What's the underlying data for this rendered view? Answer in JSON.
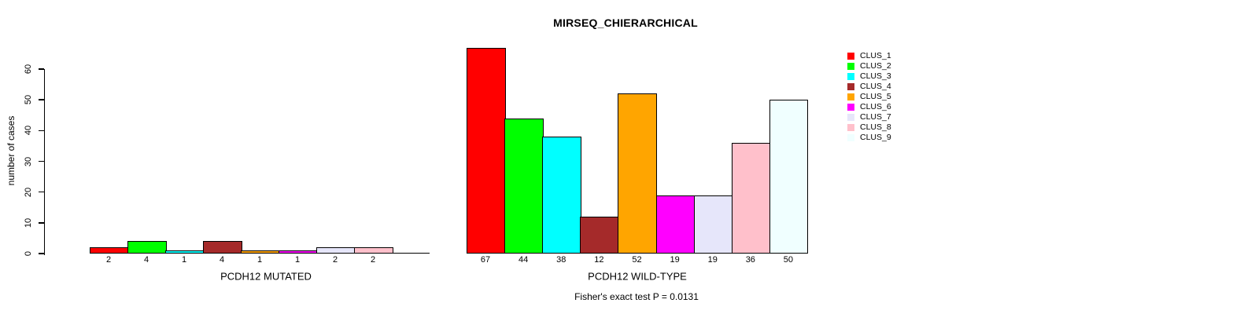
{
  "chart_data": {
    "type": "bar",
    "title": "MIRSEQ_CHIERARCHICAL",
    "ylabel": "number of cases",
    "ylim": [
      0,
      60
    ],
    "yticks": [
      0,
      10,
      20,
      30,
      40,
      50,
      60
    ],
    "grid": false,
    "annotation": "Fisher's exact test P = 0.0131",
    "legend_position": "right",
    "clusters": [
      {
        "label": "CLUS_1",
        "color": "#FF0000"
      },
      {
        "label": "CLUS_2",
        "color": "#00FF00"
      },
      {
        "label": "CLUS_3",
        "color": "#00FFFF"
      },
      {
        "label": "CLUS_4",
        "color": "#A52A2A"
      },
      {
        "label": "CLUS_5",
        "color": "#FFA500"
      },
      {
        "label": "CLUS_6",
        "color": "#FF00FF"
      },
      {
        "label": "CLUS_7",
        "color": "#E6E6FA"
      },
      {
        "label": "CLUS_8",
        "color": "#FFC0CB"
      },
      {
        "label": "CLUS_9",
        "color": "#F0FFFF"
      }
    ],
    "panels": [
      {
        "xlabel": "PCDH12 MUTATED",
        "categories": [
          "CLUS_1",
          "CLUS_2",
          "CLUS_3",
          "CLUS_4",
          "CLUS_5",
          "CLUS_6",
          "CLUS_7",
          "CLUS_8",
          "CLUS_9"
        ],
        "values": [
          2,
          4,
          1,
          4,
          1,
          1,
          2,
          2,
          0
        ],
        "bar_labels": [
          "2",
          "4",
          "1",
          "4",
          "1",
          "1",
          "2",
          "2",
          ""
        ]
      },
      {
        "xlabel": "PCDH12 WILD-TYPE",
        "categories": [
          "CLUS_1",
          "CLUS_2",
          "CLUS_3",
          "CLUS_4",
          "CLUS_5",
          "CLUS_6",
          "CLUS_7",
          "CLUS_8",
          "CLUS_9"
        ],
        "values": [
          67,
          44,
          38,
          12,
          52,
          19,
          19,
          36,
          50
        ],
        "bar_labels": [
          "67",
          "44",
          "38",
          "12",
          "52",
          "19",
          "19",
          "36",
          "50"
        ]
      }
    ],
    "line_color": "#000000",
    "background_color": "#FFFFFF"
  }
}
